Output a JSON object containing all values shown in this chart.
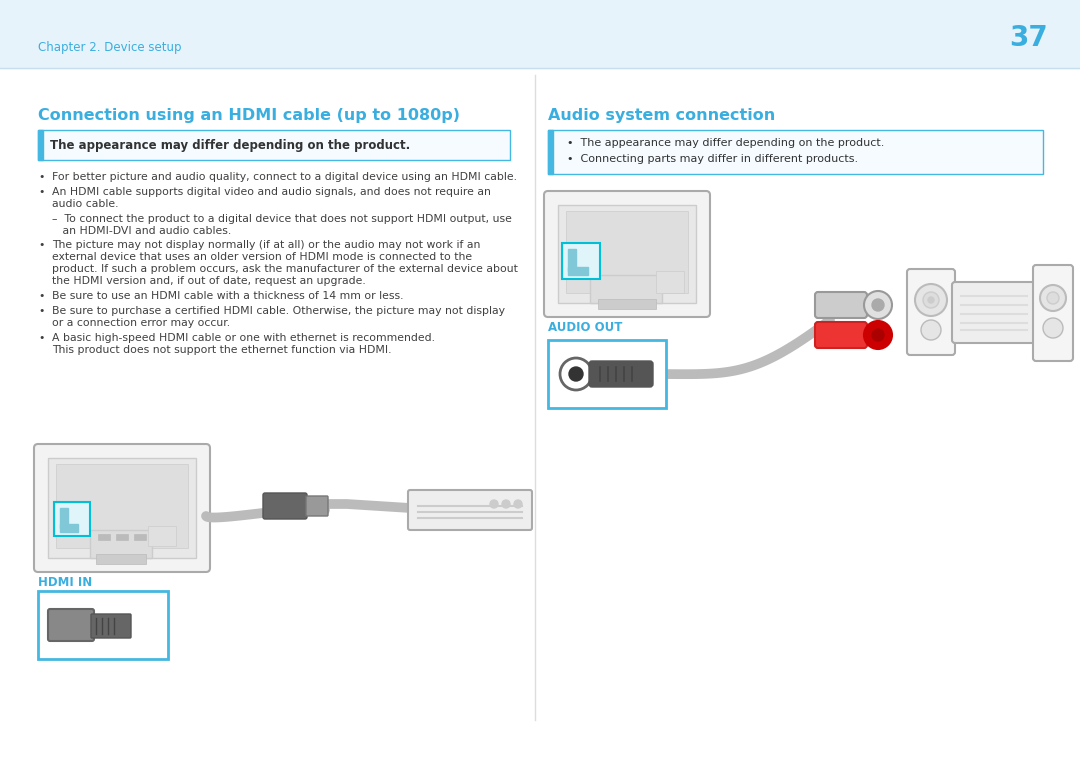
{
  "bg_color": "#E6F3FA",
  "content_bg": "#FFFFFF",
  "page_number": "37",
  "chapter_text": "Chapter 2. Device setup",
  "accent_color": "#44B8E0",
  "title_color": "#3BAEE0",
  "text_color": "#404040",
  "dark_text": "#333333",
  "bold_text": "#222222",
  "left_title": "Connection using an HDMI cable (up to 1080p)",
  "right_title": "Audio system connection",
  "left_note": "The appearance may differ depending on the product.",
  "right_note_1": "  •  The appearance may differ depending on the product.",
  "right_note_2": "  •  Connecting parts may differ in different products.",
  "hdmi_label": "HDMI IN",
  "audio_label": "AUDIO OUT",
  "b1": "For better picture and audio quality, connect to a digital device using an HDMI cable.",
  "b2a": "An HDMI cable supports digital video and audio signals, and does not require an",
  "b2b": "audio cable.",
  "b3a": "–  To connect the product to a digital device that does not support HDMI output, use",
  "b3b": "   an HDMI-DVI and audio cables.",
  "b4a": "The picture may not display normally (if at all) or the audio may not work if an",
  "b4b": "external device that uses an older version of HDMI mode is connected to the",
  "b4c": "product. If such a problem occurs, ask the manufacturer of the external device about",
  "b4d": "the HDMI version and, if out of date, request an upgrade.",
  "b5": "Be sure to use an HDMI cable with a thickness of 14 mm or less.",
  "b6a": "Be sure to purchase a certified HDMI cable. Otherwise, the picture may not display",
  "b6b": "or a connection error may occur.",
  "b7a": "A basic high-speed HDMI cable or one with ethernet is recommended.",
  "b7b": "This product does not support the ethernet function via HDMI."
}
